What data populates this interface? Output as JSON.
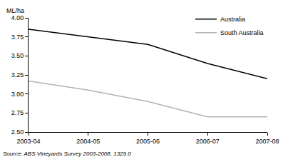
{
  "chart_data": {
    "type": "line",
    "ylabel": "ML/ha",
    "note": "Source: ABS Vineyards Survey 2003-2008, 1329.0",
    "categories": [
      "2003-04",
      "2004-05",
      "2005-06",
      "2006-07",
      "2007-08"
    ],
    "series": [
      {
        "name": "Australia",
        "color": "#000000",
        "values": [
          3.85,
          3.75,
          3.65,
          3.4,
          3.2
        ]
      },
      {
        "name": "South Australia",
        "color": "#b3b3b3",
        "values": [
          3.17,
          3.05,
          2.9,
          2.7,
          2.7
        ]
      }
    ],
    "ylim": [
      2.5,
      4.0
    ],
    "yticks": [
      {
        "value": 2.5,
        "label": "2.50"
      },
      {
        "value": 2.75,
        "label": "2.75"
      },
      {
        "value": 3.0,
        "label": "3.00"
      },
      {
        "value": 3.25,
        "label": "3.25"
      },
      {
        "value": 3.5,
        "label": "3.50"
      },
      {
        "value": 3.75,
        "label": "3.75"
      },
      {
        "value": 4.0,
        "label": "4.00"
      }
    ],
    "grid": false,
    "legend": "top right"
  }
}
